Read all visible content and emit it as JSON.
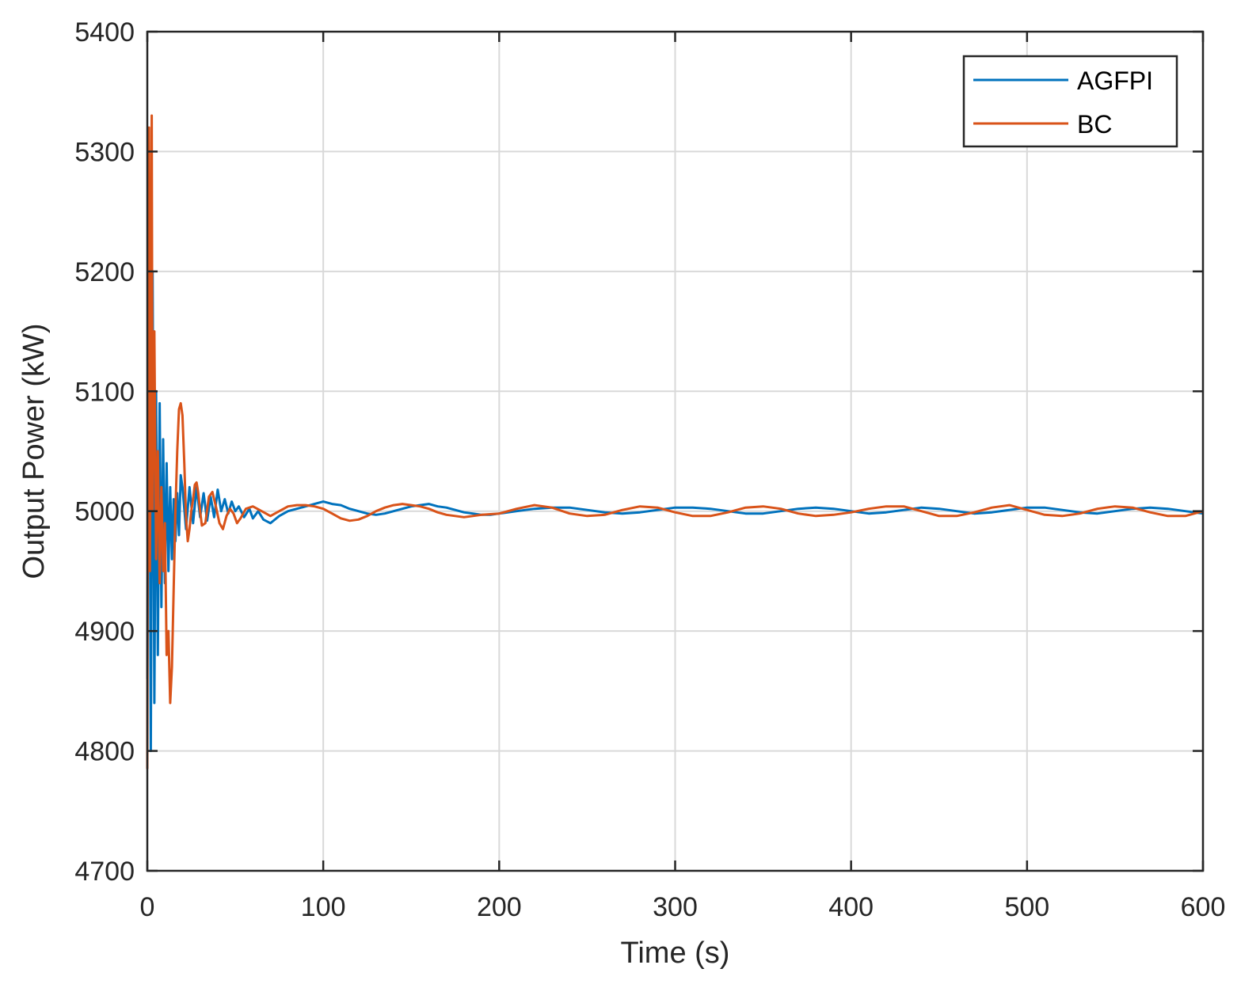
{
  "chart_data": {
    "type": "line",
    "title": "",
    "xlabel": "Time (s)",
    "ylabel": "Output Power (kW)",
    "xlim": [
      0,
      600
    ],
    "ylim": [
      4700,
      5400
    ],
    "xticks": [
      0,
      100,
      200,
      300,
      400,
      500,
      600
    ],
    "yticks": [
      4700,
      4800,
      4900,
      5000,
      5100,
      5200,
      5300,
      5400
    ],
    "xtick_labels": [
      "0",
      "100",
      "200",
      "300",
      "400",
      "500",
      "600"
    ],
    "ytick_labels": [
      "4700",
      "4800",
      "4900",
      "5000",
      "5100",
      "5200",
      "5300",
      "5400"
    ],
    "grid": true,
    "legend": "top-right",
    "series": [
      {
        "name": "AGFPI",
        "color": "#0072BD",
        "x": [
          0,
          1,
          2,
          3,
          4,
          5,
          6,
          7,
          8,
          9,
          10,
          11,
          12,
          13,
          14,
          15,
          16,
          17,
          18,
          19,
          20,
          22,
          24,
          26,
          28,
          30,
          32,
          34,
          36,
          38,
          40,
          42,
          44,
          46,
          48,
          50,
          52,
          55,
          58,
          60,
          63,
          66,
          70,
          75,
          80,
          85,
          90,
          95,
          100,
          105,
          110,
          115,
          120,
          125,
          130,
          135,
          140,
          145,
          150,
          155,
          160,
          165,
          170,
          175,
          180,
          185,
          190,
          195,
          200,
          210,
          220,
          230,
          240,
          250,
          260,
          270,
          280,
          290,
          300,
          310,
          320,
          330,
          340,
          350,
          360,
          370,
          380,
          390,
          400,
          410,
          420,
          430,
          440,
          450,
          460,
          470,
          480,
          490,
          500,
          510,
          520,
          530,
          540,
          550,
          560,
          570,
          580,
          590,
          600
        ],
        "y": [
          4860,
          5250,
          4800,
          5200,
          4840,
          5100,
          4880,
          5090,
          4920,
          5060,
          4940,
          5040,
          4950,
          5020,
          4960,
          5010,
          4975,
          5015,
          4980,
          5030,
          5020,
          4985,
          5020,
          4990,
          5020,
          4995,
          5015,
          4992,
          5012,
          4995,
          5018,
          5000,
          5010,
          4998,
          5008,
          5000,
          5004,
          4995,
          5002,
          4994,
          5000,
          4993,
          4990,
          4996,
          5000,
          5002,
          5004,
          5006,
          5008,
          5006,
          5005,
          5002,
          5000,
          4998,
          4997,
          4998,
          5000,
          5002,
          5004,
          5005,
          5006,
          5004,
          5003,
          5001,
          4999,
          4998,
          4997,
          4997,
          4998,
          5000,
          5002,
          5003,
          5003,
          5001,
          4999,
          4998,
          4999,
          5001,
          5003,
          5003,
          5002,
          5000,
          4998,
          4998,
          5000,
          5002,
          5003,
          5002,
          5000,
          4998,
          4999,
          5001,
          5003,
          5002,
          5000,
          4998,
          4999,
          5001,
          5003,
          5003,
          5001,
          4999,
          4998,
          5000,
          5002,
          5003,
          5002,
          5000,
          4998
        ]
      },
      {
        "name": "BC",
        "color": "#D95319",
        "x": [
          0,
          0.5,
          1,
          1.5,
          2,
          2.5,
          3,
          4,
          5,
          6,
          7,
          8,
          9,
          10,
          11,
          12,
          13,
          14,
          15,
          16,
          17,
          18,
          19,
          20,
          21,
          22,
          23,
          24,
          25,
          26,
          27,
          28,
          29,
          30,
          31,
          33,
          35,
          37,
          39,
          41,
          43,
          45,
          47,
          49,
          51,
          53,
          56,
          60,
          65,
          70,
          75,
          80,
          85,
          90,
          95,
          100,
          105,
          110,
          115,
          120,
          125,
          130,
          135,
          140,
          145,
          150,
          155,
          160,
          165,
          170,
          175,
          180,
          185,
          190,
          200,
          210,
          220,
          230,
          240,
          250,
          260,
          270,
          280,
          290,
          300,
          310,
          320,
          330,
          340,
          350,
          360,
          370,
          380,
          390,
          400,
          410,
          420,
          430,
          440,
          450,
          460,
          470,
          480,
          490,
          500,
          510,
          520,
          530,
          540,
          550,
          560,
          570,
          580,
          590,
          600
        ],
        "y": [
          4785,
          5200,
          5320,
          4950,
          5100,
          5330,
          5000,
          5150,
          4960,
          5050,
          4940,
          5020,
          4950,
          4990,
          4880,
          4900,
          4840,
          4870,
          4935,
          5000,
          5050,
          5085,
          5090,
          5080,
          5040,
          4995,
          4975,
          4985,
          5000,
          5010,
          5022,
          5024,
          5015,
          5000,
          4988,
          4990,
          5012,
          5016,
          5004,
          4990,
          4985,
          4996,
          5002,
          4998,
          4990,
          4994,
          5002,
          5004,
          5000,
          4996,
          5000,
          5004,
          5005,
          5005,
          5004,
          5002,
          4998,
          4994,
          4992,
          4993,
          4996,
          5000,
          5003,
          5005,
          5006,
          5005,
          5004,
          5002,
          4999,
          4997,
          4996,
          4995,
          4996,
          4997,
          4998,
          5002,
          5005,
          5003,
          4998,
          4996,
          4997,
          5001,
          5004,
          5003,
          4999,
          4996,
          4996,
          4999,
          5003,
          5004,
          5002,
          4998,
          4996,
          4997,
          4999,
          5002,
          5004,
          5004,
          5000,
          4996,
          4996,
          4999,
          5003,
          5005,
          5001,
          4997,
          4996,
          4998,
          5002,
          5004,
          5003,
          4999,
          4996,
          4996,
          5000
        ]
      }
    ]
  }
}
